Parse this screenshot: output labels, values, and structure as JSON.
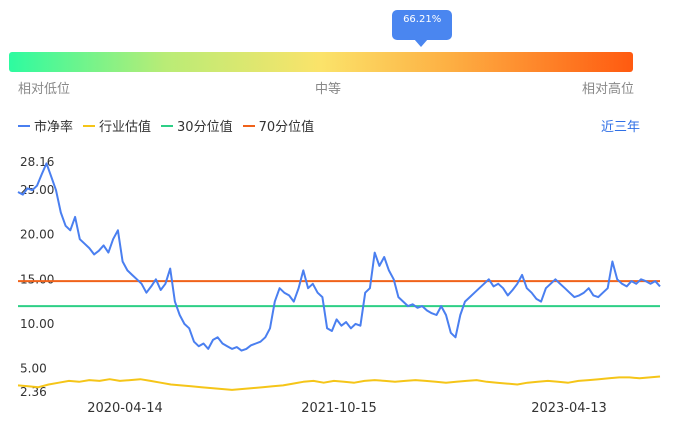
{
  "percentile_marker": {
    "label": "66.21%",
    "value": 0.6621
  },
  "gauge": {
    "left_label": "相对低位",
    "mid_label": "中等",
    "right_label": "相对高位",
    "colors": [
      "#2dfba0",
      "#fbe36a",
      "#ff5a10"
    ]
  },
  "legend": [
    {
      "label": "市净率",
      "color": "#4a7ff0"
    },
    {
      "label": "行业估值",
      "color": "#f5c518"
    },
    {
      "label": "30分位值",
      "color": "#2ecf86"
    },
    {
      "label": "70分位值",
      "color": "#f0621a"
    }
  ],
  "range_button": "近三年",
  "chart_data": {
    "type": "line",
    "y_ticks": [
      "28.16",
      "25.00",
      "20.00",
      "15.00",
      "10.00",
      "5.00",
      "2.36"
    ],
    "y_tick_values": [
      28.16,
      25,
      20,
      15,
      10,
      5,
      2.36
    ],
    "x_ticks": [
      "2020-04-14",
      "2021-10-15",
      "2023-04-13"
    ],
    "ylim": [
      2.36,
      28.16
    ],
    "series": [
      {
        "name": "市净率",
        "color": "#4a7ff0",
        "values": [
          24.8,
          24.5,
          25.2,
          25.0,
          25.5,
          26.8,
          28.0,
          26.5,
          25.0,
          22.5,
          21.0,
          20.5,
          22.0,
          19.5,
          19.0,
          18.5,
          17.8,
          18.2,
          18.8,
          18.0,
          19.5,
          20.5,
          17.0,
          16.0,
          15.5,
          15.0,
          14.5,
          13.5,
          14.2,
          15.0,
          13.8,
          14.5,
          16.2,
          12.5,
          11.0,
          10.0,
          9.5,
          8.0,
          7.5,
          7.8,
          7.2,
          8.2,
          8.5,
          7.8,
          7.5,
          7.2,
          7.4,
          7.0,
          7.2,
          7.6,
          7.8,
          8.0,
          8.5,
          9.5,
          12.5,
          14.0,
          13.5,
          13.2,
          12.5,
          14.0,
          16.0,
          14.0,
          14.5,
          13.5,
          13.0,
          9.5,
          9.2,
          10.5,
          9.8,
          10.2,
          9.5,
          10.0,
          9.8,
          13.5,
          14.0,
          18.0,
          16.5,
          17.5,
          16.0,
          15.0,
          13.0,
          12.5,
          12.0,
          12.2,
          11.8,
          12.0,
          11.5,
          11.2,
          11.0,
          12.0,
          11.0,
          9.0,
          8.5,
          11.0,
          12.5,
          13.0,
          13.5,
          14.0,
          14.5,
          15.0,
          14.2,
          14.5,
          14.0,
          13.2,
          13.8,
          14.5,
          15.5,
          14.0,
          13.5,
          12.8,
          12.5,
          14.0,
          14.5,
          15.0,
          14.5,
          14.0,
          13.5,
          13.0,
          13.2,
          13.5,
          14.0,
          13.2,
          13.0,
          13.5,
          14.0,
          17.0,
          15.0,
          14.5,
          14.2,
          14.8,
          14.5,
          15.0,
          14.8,
          14.5,
          14.8,
          14.2
        ]
      },
      {
        "name": "行业估值",
        "color": "#f5c518",
        "values": [
          3.1,
          3.0,
          2.9,
          3.2,
          3.4,
          3.6,
          3.5,
          3.7,
          3.6,
          3.8,
          3.6,
          3.7,
          3.8,
          3.6,
          3.4,
          3.2,
          3.1,
          3.0,
          2.9,
          2.8,
          2.7,
          2.6,
          2.7,
          2.8,
          2.9,
          3.0,
          3.1,
          3.3,
          3.5,
          3.6,
          3.4,
          3.6,
          3.5,
          3.4,
          3.6,
          3.7,
          3.6,
          3.5,
          3.6,
          3.7,
          3.6,
          3.5,
          3.4,
          3.5,
          3.6,
          3.7,
          3.5,
          3.4,
          3.3,
          3.2,
          3.4,
          3.5,
          3.6,
          3.5,
          3.4,
          3.6,
          3.7,
          3.8,
          3.9,
          4.0,
          4.0,
          3.9,
          4.0,
          4.1
        ]
      },
      {
        "name": "30分位值",
        "color": "#2ecf86",
        "values": [
          12.0,
          12.0
        ]
      },
      {
        "name": "70分位值",
        "color": "#f0621a",
        "values": [
          14.8,
          14.8
        ]
      }
    ]
  }
}
